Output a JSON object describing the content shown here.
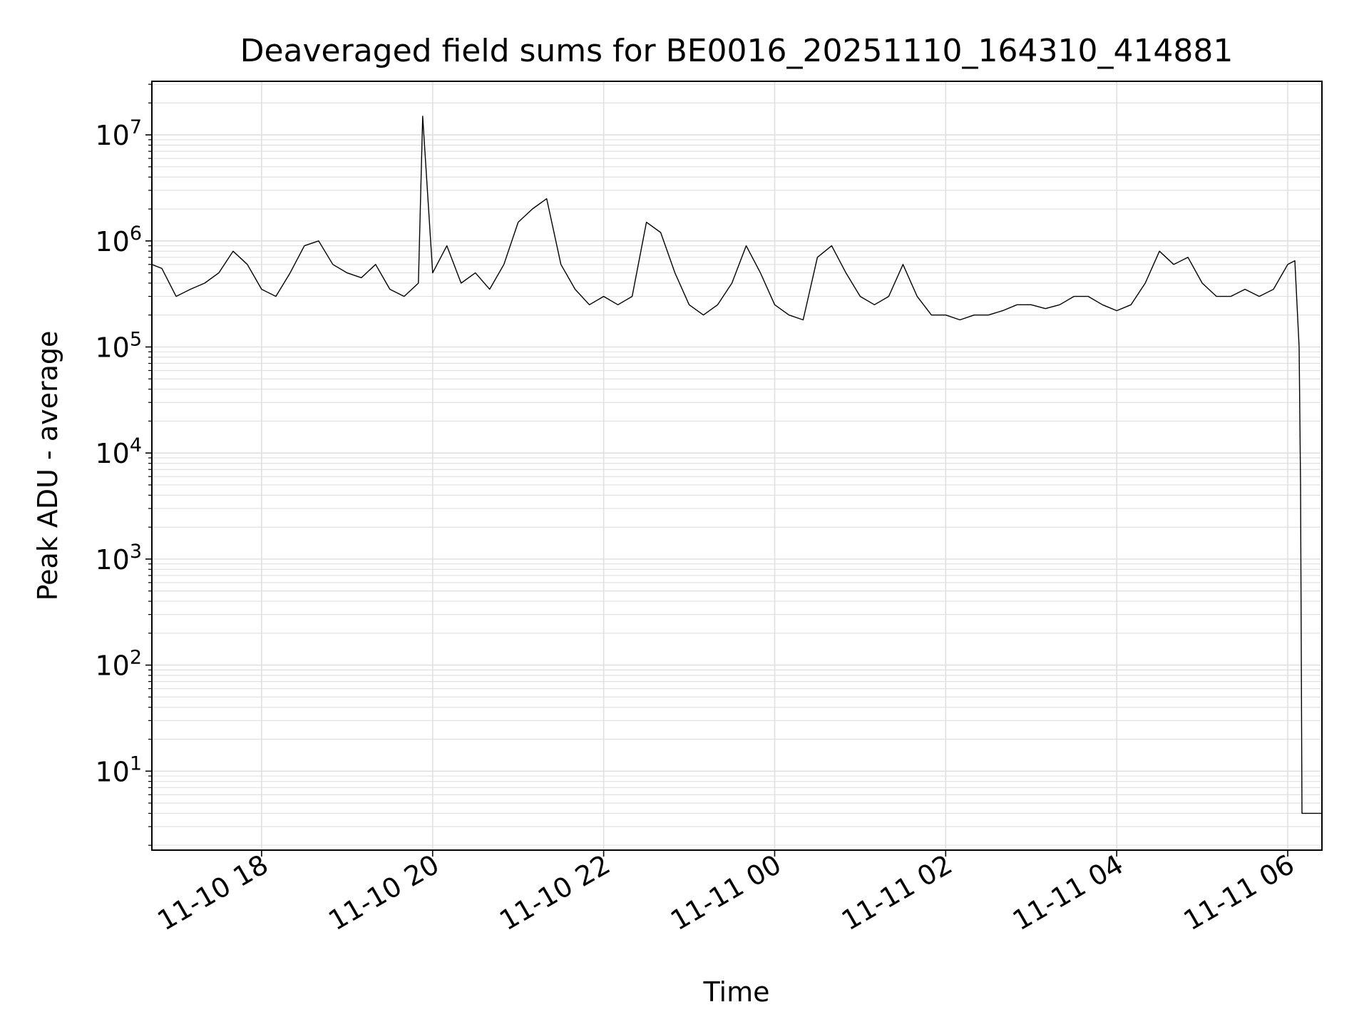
{
  "chart_data": {
    "type": "line",
    "title": "Deaveraged field sums for BE0016_20251110_164310_414881",
    "xlabel": "Time",
    "ylabel": "Peak ADU - average",
    "yscale": "log",
    "xlim": [
      "2025-11-10 16:43",
      "2025-11-11 06:24"
    ],
    "ylim": [
      1.8,
      32000000
    ],
    "grid": "on (major and minor)",
    "legend": "none",
    "line_color": "#000000",
    "grid_color": "#e0e0e0",
    "x_ticks": [
      {
        "value": "2025-11-10 18:00",
        "label": "11-10 18"
      },
      {
        "value": "2025-11-10 20:00",
        "label": "11-10 20"
      },
      {
        "value": "2025-11-10 22:00",
        "label": "11-10 22"
      },
      {
        "value": "2025-11-11 00:00",
        "label": "11-11 00"
      },
      {
        "value": "2025-11-11 02:00",
        "label": "11-11 02"
      },
      {
        "value": "2025-11-11 04:00",
        "label": "11-11 04"
      },
      {
        "value": "2025-11-11 06:00",
        "label": "11-11 06"
      }
    ],
    "y_ticks": [
      {
        "value": 10,
        "exp": "1"
      },
      {
        "value": 100,
        "exp": "2"
      },
      {
        "value": 1000,
        "exp": "3"
      },
      {
        "value": 10000,
        "exp": "4"
      },
      {
        "value": 100000,
        "exp": "5"
      },
      {
        "value": 1000000,
        "exp": "6"
      },
      {
        "value": 10000000,
        "exp": "7"
      }
    ],
    "y_tick_base": "10",
    "series": [
      {
        "x": [
          "2025-11-10 16:43",
          "2025-11-10 16:50",
          "2025-11-10 17:00",
          "2025-11-10 17:10",
          "2025-11-10 17:20",
          "2025-11-10 17:30",
          "2025-11-10 17:40",
          "2025-11-10 17:50",
          "2025-11-10 18:00",
          "2025-11-10 18:10",
          "2025-11-10 18:20",
          "2025-11-10 18:30",
          "2025-11-10 18:40",
          "2025-11-10 18:50",
          "2025-11-10 19:00",
          "2025-11-10 19:10",
          "2025-11-10 19:20",
          "2025-11-10 19:30",
          "2025-11-10 19:40",
          "2025-11-10 19:50",
          "2025-11-10 19:53",
          "2025-11-10 20:00",
          "2025-11-10 20:10",
          "2025-11-10 20:20",
          "2025-11-10 20:30",
          "2025-11-10 20:40",
          "2025-11-10 20:50",
          "2025-11-10 21:00",
          "2025-11-10 21:10",
          "2025-11-10 21:20",
          "2025-11-10 21:30",
          "2025-11-10 21:40",
          "2025-11-10 21:50",
          "2025-11-10 22:00",
          "2025-11-10 22:10",
          "2025-11-10 22:20",
          "2025-11-10 22:30",
          "2025-11-10 22:40",
          "2025-11-10 22:50",
          "2025-11-10 23:00",
          "2025-11-10 23:10",
          "2025-11-10 23:20",
          "2025-11-10 23:30",
          "2025-11-10 23:40",
          "2025-11-10 23:50",
          "2025-11-11 00:00",
          "2025-11-11 00:10",
          "2025-11-11 00:20",
          "2025-11-11 00:30",
          "2025-11-11 00:40",
          "2025-11-11 00:50",
          "2025-11-11 01:00",
          "2025-11-11 01:10",
          "2025-11-11 01:20",
          "2025-11-11 01:30",
          "2025-11-11 01:40",
          "2025-11-11 01:50",
          "2025-11-11 02:00",
          "2025-11-11 02:10",
          "2025-11-11 02:20",
          "2025-11-11 02:30",
          "2025-11-11 02:40",
          "2025-11-11 02:50",
          "2025-11-11 03:00",
          "2025-11-11 03:10",
          "2025-11-11 03:20",
          "2025-11-11 03:30",
          "2025-11-11 03:40",
          "2025-11-11 03:50",
          "2025-11-11 04:00",
          "2025-11-11 04:10",
          "2025-11-11 04:20",
          "2025-11-11 04:30",
          "2025-11-11 04:40",
          "2025-11-11 04:50",
          "2025-11-11 05:00",
          "2025-11-11 05:10",
          "2025-11-11 05:20",
          "2025-11-11 05:30",
          "2025-11-11 05:40",
          "2025-11-11 05:50",
          "2025-11-11 06:00",
          "2025-11-11 06:05",
          "2025-11-11 06:08",
          "2025-11-11 06:09",
          "2025-11-11 06:10",
          "2025-11-11 06:12",
          "2025-11-11 06:24"
        ],
        "y": [
          600000,
          550000,
          300000,
          350000,
          400000,
          500000,
          800000,
          600000,
          350000,
          300000,
          500000,
          900000,
          1000000,
          600000,
          500000,
          450000,
          600000,
          350000,
          300000,
          400000,
          15000000,
          500000,
          900000,
          400000,
          500000,
          350000,
          600000,
          1500000,
          2000000,
          2500000,
          600000,
          350000,
          250000,
          300000,
          250000,
          300000,
          1500000,
          1200000,
          500000,
          250000,
          200000,
          250000,
          400000,
          900000,
          500000,
          250000,
          200000,
          180000,
          700000,
          900000,
          500000,
          300000,
          250000,
          300000,
          600000,
          300000,
          200000,
          200000,
          180000,
          200000,
          200000,
          220000,
          250000,
          250000,
          230000,
          250000,
          300000,
          300000,
          250000,
          220000,
          250000,
          400000,
          800000,
          600000,
          700000,
          400000,
          300000,
          300000,
          350000,
          300000,
          350000,
          600000,
          650000,
          100000,
          5000,
          4,
          4,
          4
        ]
      }
    ]
  }
}
